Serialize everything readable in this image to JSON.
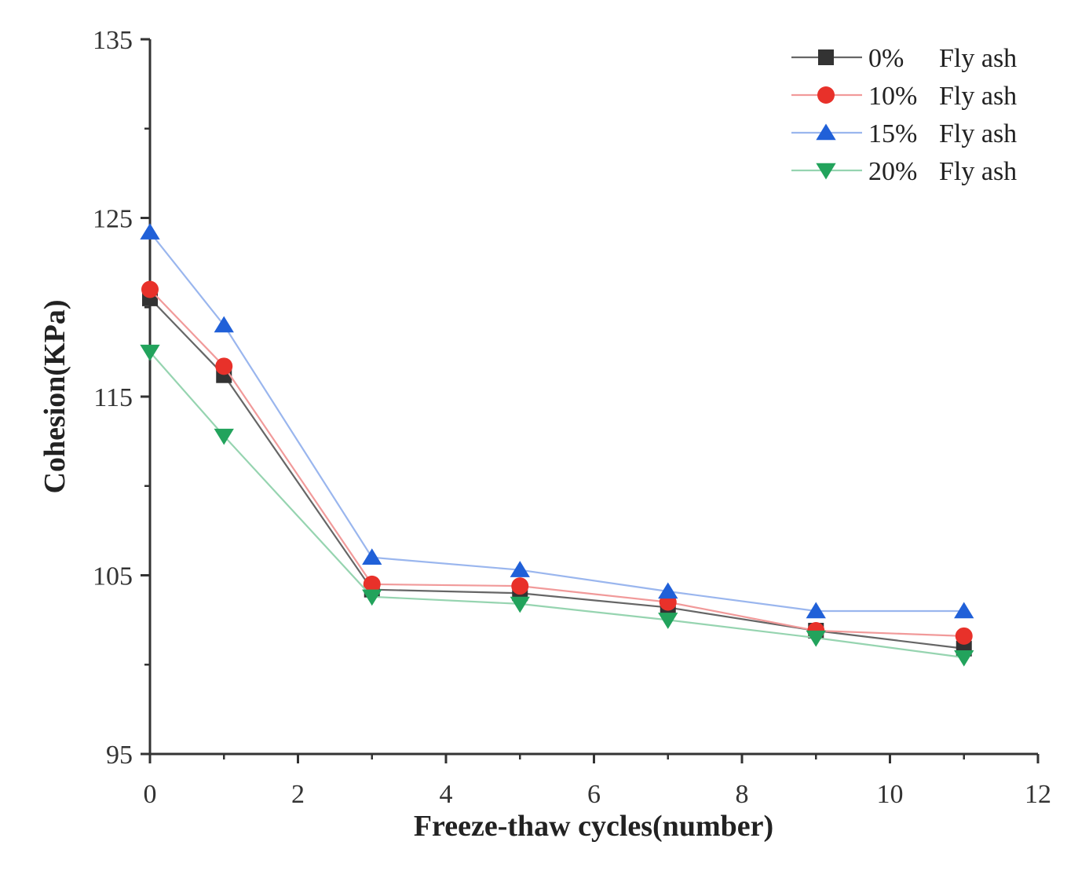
{
  "chart_data": {
    "type": "line",
    "title": "",
    "xlabel": "Freeze-thaw cycles(number)",
    "ylabel": "Cohesion(KPa)",
    "xlim": [
      0,
      12
    ],
    "ylim": [
      95,
      135
    ],
    "xticks": [
      0,
      2,
      4,
      6,
      8,
      10,
      12
    ],
    "yticks": [
      95,
      105,
      115,
      125,
      135
    ],
    "grid": false,
    "legend_position": "top-right",
    "x": [
      0,
      1,
      3,
      5,
      7,
      9,
      11
    ],
    "series": [
      {
        "name": "0%",
        "suffix": "Fly ash",
        "marker": "square",
        "color": "#333333",
        "line_color": "#666666",
        "values": [
          120.5,
          116.2,
          104.2,
          104.0,
          103.2,
          101.9,
          100.9
        ]
      },
      {
        "name": "10%",
        "suffix": "Fly ash",
        "marker": "circle",
        "color": "#e8312a",
        "line_color": "#f19a9a",
        "values": [
          121.0,
          116.7,
          104.5,
          104.4,
          103.5,
          101.9,
          101.6
        ]
      },
      {
        "name": "15%",
        "suffix": "Fly ash",
        "marker": "triangle-up",
        "color": "#2060d8",
        "line_color": "#9ab6ee",
        "values": [
          124.2,
          119.0,
          106.0,
          105.3,
          104.1,
          103.0,
          103.0
        ]
      },
      {
        "name": "20%",
        "suffix": "Fly ash",
        "marker": "triangle-down",
        "color": "#22a35c",
        "line_color": "#96d4b0",
        "values": [
          117.5,
          112.8,
          103.8,
          103.4,
          102.5,
          101.5,
          100.4
        ]
      }
    ]
  }
}
